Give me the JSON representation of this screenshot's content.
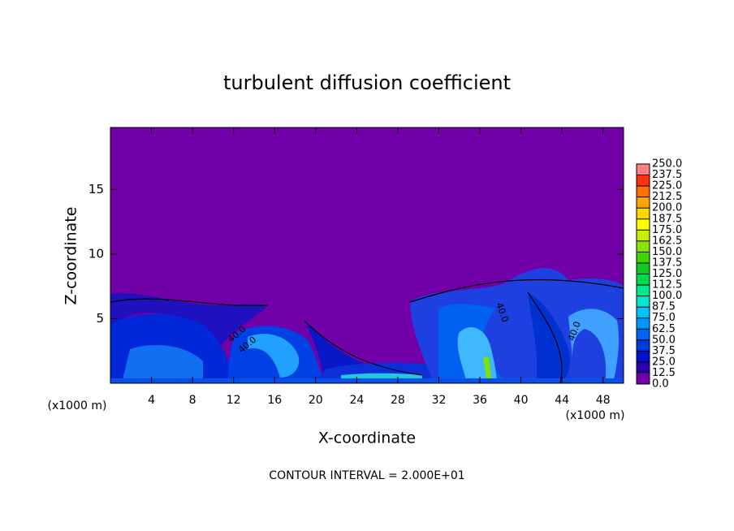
{
  "chart_data": {
    "type": "contour",
    "title": "turbulent diffusion coefficient",
    "x_label": "X-coordinate",
    "y_label": "Z-coordinate",
    "x_unit_label": "(x1000 m)",
    "y_unit_label": "(x1000 m)",
    "footer": "CONTOUR INTERVAL = 2.000E+01",
    "xlim": [
      0,
      50
    ],
    "xticks": [
      4,
      8,
      12,
      16,
      20,
      24,
      28,
      32,
      36,
      40,
      44,
      48
    ],
    "ylim": [
      0,
      19.8
    ],
    "yticks": [
      5,
      10,
      15
    ],
    "annotations": [
      "40.0",
      "40.0",
      "40.0",
      "40.0"
    ],
    "levels": [
      {
        "value": 0,
        "label": "0.0"
      },
      {
        "value": 12.5,
        "label": "12.5"
      },
      {
        "value": 25,
        "label": "25.0"
      },
      {
        "value": 37.5,
        "label": "37.5"
      },
      {
        "value": 50,
        "label": "50.0"
      },
      {
        "value": 62.5,
        "label": "62.5"
      },
      {
        "value": 75,
        "label": "75.0"
      },
      {
        "value": 87.5,
        "label": "87.5"
      },
      {
        "value": 100,
        "label": "100.0"
      },
      {
        "value": 112.5,
        "label": "112.5"
      },
      {
        "value": 125,
        "label": "125.0"
      },
      {
        "value": 137.5,
        "label": "137.5"
      },
      {
        "value": 150,
        "label": "150.0"
      },
      {
        "value": 162.5,
        "label": "162.5"
      },
      {
        "value": 175,
        "label": "175.0"
      },
      {
        "value": 187.5,
        "label": "187.5"
      },
      {
        "value": 200,
        "label": "200.0"
      },
      {
        "value": 212.5,
        "label": "212.5"
      },
      {
        "value": 225,
        "label": "225.0"
      },
      {
        "value": 237.5,
        "label": "237.5"
      },
      {
        "value": 250,
        "label": "250.0"
      }
    ],
    "colors": [
      "#7200a8",
      "#2a00b0",
      "#0010d0",
      "#0038e0",
      "#0064f0",
      "#0094ff",
      "#00c4ff",
      "#00e8d0",
      "#00e890",
      "#00d850",
      "#10c820",
      "#44d400",
      "#88e400",
      "#c8f000",
      "#ffff00",
      "#ffd400",
      "#ffa400",
      "#ff7000",
      "#ff3010",
      "#ff8080"
    ]
  }
}
